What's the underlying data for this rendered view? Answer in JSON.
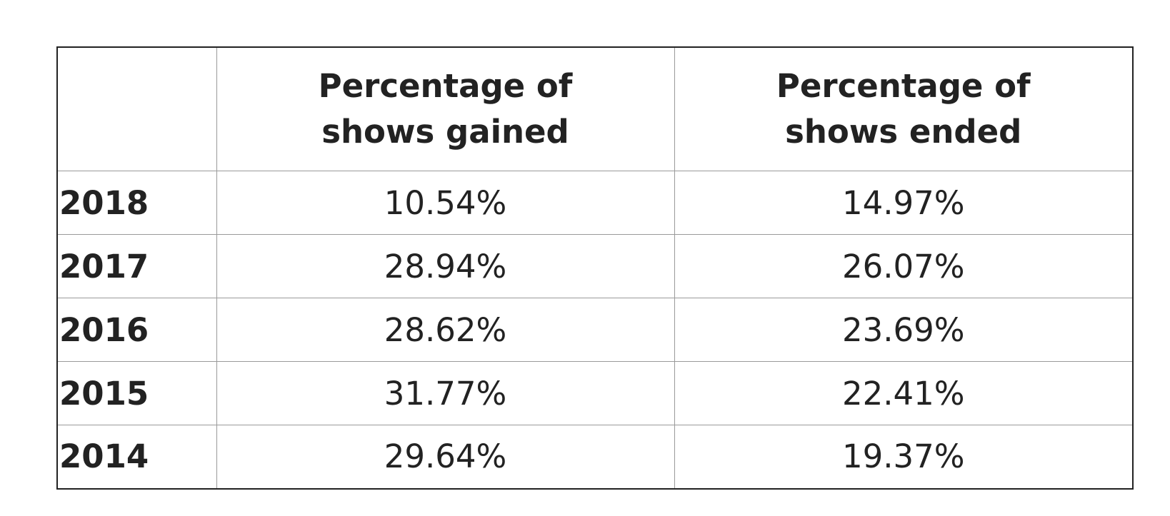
{
  "table": {
    "columns": [
      {
        "line1": "",
        "line2": ""
      },
      {
        "line1": "Percentage of",
        "line2": "shows gained"
      },
      {
        "line1": "Percentage of",
        "line2": "shows ended"
      }
    ],
    "rows": [
      {
        "year": "2018",
        "gained": "10.54%",
        "ended": "14.97%"
      },
      {
        "year": "2017",
        "gained": "28.94%",
        "ended": "26.07%"
      },
      {
        "year": "2016",
        "gained": "28.62%",
        "ended": "23.69%"
      },
      {
        "year": "2015",
        "gained": "31.77%",
        "ended": "22.41%"
      },
      {
        "year": "2014",
        "gained": "29.64%",
        "ended": "19.37%"
      }
    ]
  }
}
